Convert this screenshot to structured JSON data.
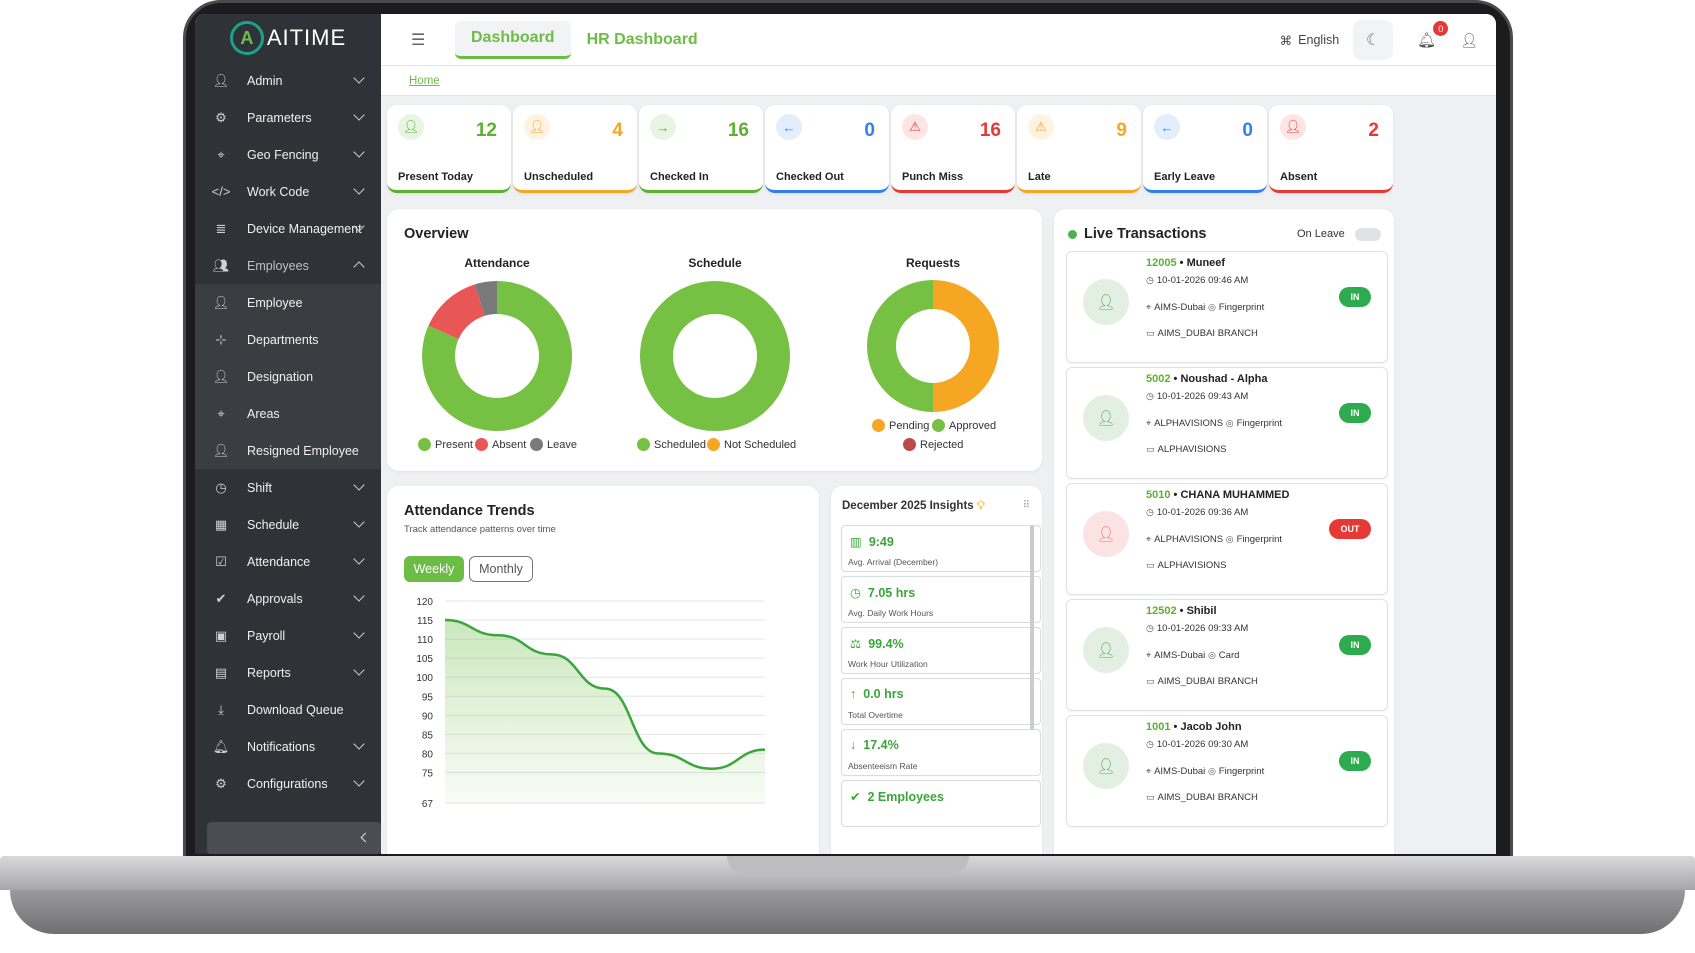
{
  "brand": {
    "name": "AITIME"
  },
  "sidebar": {
    "items": [
      {
        "label": "Admin",
        "icon": "user-cog-icon",
        "chevron": "down"
      },
      {
        "label": "Parameters",
        "icon": "gear-icon",
        "chevron": "down"
      },
      {
        "label": "Geo Fencing",
        "icon": "location-pin-icon",
        "chevron": "down"
      },
      {
        "label": "Work Code",
        "icon": "code-icon",
        "chevron": "down"
      },
      {
        "label": "Device Management",
        "icon": "server-icon",
        "chevron": "down"
      },
      {
        "label": "Employees",
        "icon": "people-icon",
        "chevron": "up"
      },
      {
        "label": "Employee",
        "icon": "user-icon",
        "sub": true
      },
      {
        "label": "Departments",
        "icon": "sitemap-icon",
        "sub": true
      },
      {
        "label": "Designation",
        "icon": "user-tie-icon",
        "sub": true
      },
      {
        "label": "Areas",
        "icon": "location-pin-icon",
        "sub": true
      },
      {
        "label": "Resigned Employee",
        "icon": "user-minus-icon",
        "sub": true
      },
      {
        "label": "Shift",
        "icon": "clock-icon",
        "chevron": "down"
      },
      {
        "label": "Schedule",
        "icon": "calendar-icon",
        "chevron": "down"
      },
      {
        "label": "Attendance",
        "icon": "clipboard-check-icon",
        "chevron": "down"
      },
      {
        "label": "Approvals",
        "icon": "check-circle-icon",
        "chevron": "down"
      },
      {
        "label": "Payroll",
        "icon": "money-icon",
        "chevron": "down"
      },
      {
        "label": "Reports",
        "icon": "file-icon",
        "chevron": "down"
      },
      {
        "label": "Download Queue",
        "icon": "download-icon"
      },
      {
        "label": "Notifications",
        "icon": "bell-icon",
        "chevron": "down"
      },
      {
        "label": "Configurations",
        "icon": "gear-icon",
        "chevron": "down"
      }
    ]
  },
  "header": {
    "tabs": [
      "Dashboard",
      "HR Dashboard"
    ],
    "language": "English",
    "notification_count": "0"
  },
  "breadcrumb": {
    "home": "Home"
  },
  "stats": [
    {
      "label": "Present Today",
      "value": "12",
      "color": "#5cb02e",
      "icon": "user-icon"
    },
    {
      "label": "Unscheduled",
      "value": "4",
      "color": "#f5a623",
      "icon": "user-icon"
    },
    {
      "label": "Checked In",
      "value": "16",
      "color": "#5cb02e",
      "icon": "arrow-right-icon"
    },
    {
      "label": "Checked Out",
      "value": "0",
      "color": "#2f80ed",
      "icon": "arrow-left-icon"
    },
    {
      "label": "Punch Miss",
      "value": "16",
      "color": "#e53935",
      "icon": "warning-icon"
    },
    {
      "label": "Late",
      "value": "9",
      "color": "#f5a623",
      "icon": "warning-icon"
    },
    {
      "label": "Early Leave",
      "value": "0",
      "color": "#2f80ed",
      "icon": "arrow-left-icon"
    },
    {
      "label": "Absent",
      "value": "2",
      "color": "#e53935",
      "icon": "user-icon"
    }
  ],
  "overview": {
    "title": "Overview",
    "charts": [
      {
        "title": "Attendance",
        "slices": [
          {
            "label": "Present",
            "value": 12,
            "color": "#76c043"
          },
          {
            "label": "Absent",
            "value": 2,
            "color": "#e85656"
          },
          {
            "label": "Leave",
            "value": 0.7,
            "color": "#7a7a7a"
          }
        ]
      },
      {
        "title": "Schedule",
        "slices": [
          {
            "label": "Scheduled",
            "value": 1,
            "color": "#76c043"
          },
          {
            "label": "Not Scheduled",
            "value": 0,
            "color": "#f5a623"
          }
        ]
      },
      {
        "title": "Requests",
        "slices": [
          {
            "label": "Pending",
            "value": 1,
            "color": "#f5a623"
          },
          {
            "label": "Approved",
            "value": 1,
            "color": "#76c043"
          },
          {
            "label": "Rejected",
            "value": 0,
            "color": "#b94a48"
          }
        ]
      }
    ]
  },
  "trends": {
    "title": "Attendance Trends",
    "subtitle": "Track attendance patterns over time",
    "toggle": [
      "Weekly",
      "Monthly"
    ]
  },
  "chart_data": {
    "type": "area",
    "title": "Attendance Trends",
    "x": [
      0,
      1,
      2,
      3,
      4,
      5,
      6
    ],
    "y": [
      115,
      111,
      106,
      97,
      80,
      76,
      81
    ],
    "yticks": [
      120,
      115,
      110,
      105,
      100,
      95,
      90,
      85,
      80,
      75,
      67
    ],
    "ylim": [
      67,
      120
    ],
    "grid": true
  },
  "insights": {
    "title": "December 2025 Insights",
    "items": [
      {
        "value": "9:49",
        "label": "Avg. Arrival (December)",
        "icon": "chart-icon"
      },
      {
        "value": "7.05 hrs",
        "label": "Avg. Daily Work Hours",
        "icon": "clock-icon"
      },
      {
        "value": "99.4%",
        "label": "Work Hour Utilization",
        "icon": "scale-icon"
      },
      {
        "value": "0.0 hrs",
        "label": "Total Overtime",
        "icon": "arrow-up-icon"
      },
      {
        "value": "17.4%",
        "label": "Absenteeism Rate",
        "icon": "arrow-down-icon"
      },
      {
        "value": "2 Employees",
        "label": "",
        "icon": "check-circle-icon"
      }
    ]
  },
  "live": {
    "title": "Live Transactions",
    "toggle_label": "On Leave",
    "items": [
      {
        "id": "12005",
        "name": "Muneef",
        "time": "10-01-2026 09:46 AM",
        "location": "AIMS-Dubai",
        "method": "Fingerprint",
        "branch": "AIMS_DUBAI BRANCH",
        "status": "IN"
      },
      {
        "id": "5002",
        "name": "Noushad - Alpha",
        "time": "10-01-2026 09:43 AM",
        "location": "ALPHAVISIONS",
        "method": "Fingerprint",
        "branch": "ALPHAVISIONS",
        "status": "IN"
      },
      {
        "id": "5010",
        "name": "CHANA MUHAMMED",
        "time": "10-01-2026 09:36 AM",
        "location": "ALPHAVISIONS",
        "method": "Fingerprint",
        "branch": "ALPHAVISIONS",
        "status": "OUT"
      },
      {
        "id": "12502",
        "name": "Shibil",
        "time": "10-01-2026 09:33 AM",
        "location": "AIMS-Dubai",
        "method": "Card",
        "branch": "AIMS_DUBAI BRANCH",
        "status": "IN"
      },
      {
        "id": "1001",
        "name": "Jacob John",
        "time": "10-01-2026 09:30 AM",
        "location": "AIMS-Dubai",
        "method": "Fingerprint",
        "branch": "AIMS_DUBAI BRANCH",
        "status": "IN"
      }
    ]
  }
}
